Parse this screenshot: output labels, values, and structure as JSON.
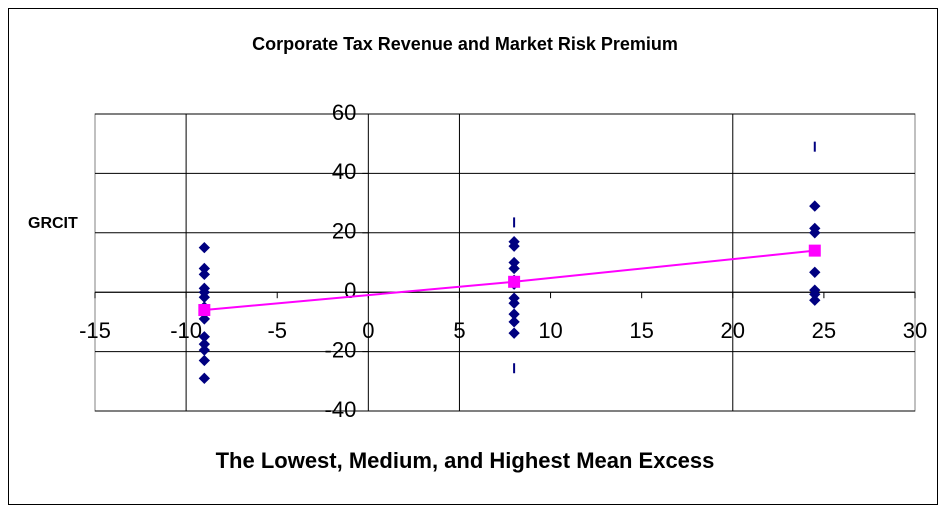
{
  "chart_data": {
    "type": "scatter",
    "title": "Corporate Tax Revenue and Market Risk Premium",
    "x_label": "The Lowest, Medium, and Highest Mean Excess",
    "y_label": "GRCIT",
    "xlim": [
      -15,
      30
    ],
    "xticks": [
      -15,
      -10,
      -5,
      0,
      5,
      10,
      15,
      20,
      25,
      30
    ],
    "xgrid": [
      -10,
      5,
      20
    ],
    "ylim": [
      -40,
      60
    ],
    "yticks": [
      -40,
      -20,
      0,
      20,
      40,
      60
    ],
    "grid": true,
    "series": [
      {
        "color": "#000080",
        "marker": "diamond",
        "x": [
          -9,
          -9,
          -9,
          -9,
          -9,
          -9,
          -9,
          -9,
          -9,
          -9,
          -9,
          -9,
          -9,
          -9,
          8,
          8,
          8,
          8,
          8,
          8,
          8,
          8,
          8,
          8,
          8,
          24.5,
          24.5,
          24.5,
          24.5,
          24.5,
          24.5,
          24.5
        ],
        "values": [
          15,
          8,
          6,
          1.3,
          0,
          -1.7,
          -5,
          -7,
          -9,
          -15,
          -17.5,
          -19.5,
          -23,
          -29,
          17,
          15.5,
          10,
          8,
          4,
          2.7,
          -2,
          -3.7,
          -7.4,
          -10,
          -13.8,
          29,
          21.5,
          20,
          6.7,
          0.7,
          -0.7,
          -2.7
        ]
      },
      {
        "color": "#000080",
        "marker": "dash",
        "x": [
          8,
          8,
          24.5
        ],
        "values": [
          23.5,
          -25.6,
          49
        ]
      },
      {
        "color": "#ff00ff",
        "marker": "square",
        "line": true,
        "x": [
          -9,
          8,
          24.5
        ],
        "values": [
          -6,
          3.5,
          14
        ]
      }
    ]
  }
}
